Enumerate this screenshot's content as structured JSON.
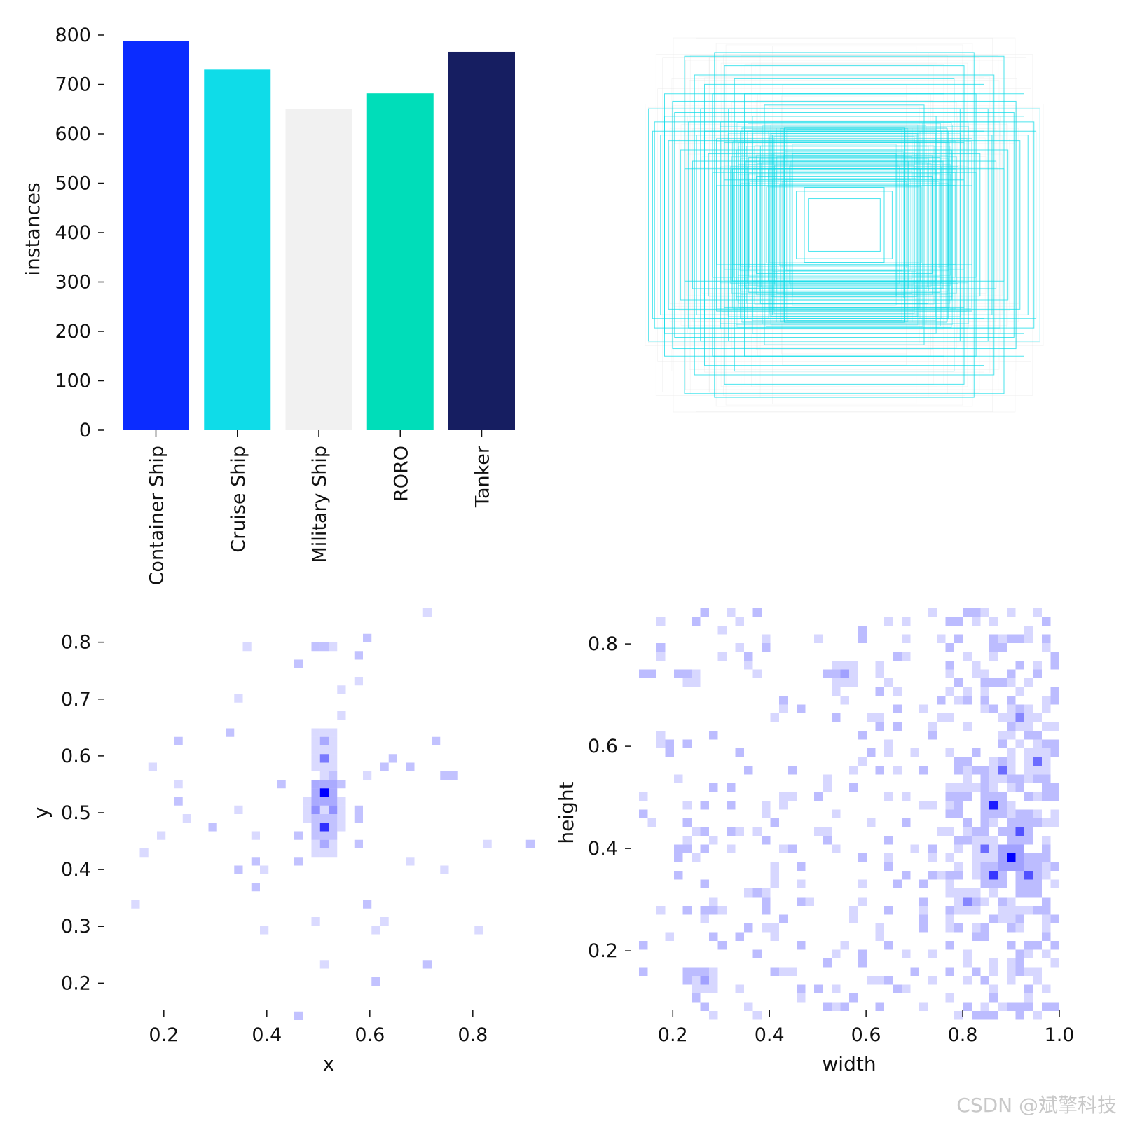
{
  "chart_data": [
    {
      "type": "bar",
      "panel": "class-counts",
      "categories": [
        "Container Ship",
        "Cruise Ship",
        "Military Ship",
        "RORO",
        "Tanker"
      ],
      "values": [
        788,
        730,
        650,
        682,
        766
      ],
      "colors": [
        "#0b2cff",
        "#0fdce8",
        "#f1f1f1",
        "#00ddb9",
        "#161e61"
      ],
      "ylabel": "instances",
      "yticks": [
        0,
        100,
        200,
        300,
        400,
        500,
        600,
        700,
        800
      ],
      "ylim": [
        0,
        800
      ]
    },
    {
      "type": "rectangles-overlay",
      "panel": "box-shapes",
      "color": "#0fdce8",
      "description_of_data": "anchor-centred bounding boxes, width x height in normalized units",
      "boxes": [
        [
          0.98,
          0.62
        ],
        [
          0.95,
          0.55
        ],
        [
          0.9,
          0.7
        ],
        [
          0.8,
          0.9
        ],
        [
          0.65,
          0.92
        ],
        [
          0.92,
          0.48
        ],
        [
          0.85,
          0.6
        ],
        [
          0.75,
          0.8
        ],
        [
          0.7,
          0.75
        ],
        [
          0.6,
          0.85
        ],
        [
          0.88,
          0.45
        ],
        [
          0.78,
          0.55
        ],
        [
          0.72,
          0.62
        ],
        [
          0.66,
          0.7
        ],
        [
          0.55,
          0.78
        ],
        [
          0.82,
          0.4
        ],
        [
          0.74,
          0.48
        ],
        [
          0.62,
          0.55
        ],
        [
          0.58,
          0.62
        ],
        [
          0.5,
          0.7
        ],
        [
          0.68,
          0.38
        ],
        [
          0.6,
          0.44
        ],
        [
          0.52,
          0.5
        ],
        [
          0.46,
          0.58
        ],
        [
          0.4,
          0.64
        ],
        [
          0.56,
          0.3
        ],
        [
          0.48,
          0.36
        ],
        [
          0.42,
          0.42
        ],
        [
          0.36,
          0.48
        ],
        [
          0.3,
          0.52
        ],
        [
          0.44,
          0.26
        ],
        [
          0.38,
          0.3
        ],
        [
          0.32,
          0.34
        ],
        [
          0.26,
          0.38
        ],
        [
          0.2,
          0.2
        ],
        [
          0.24,
          0.18
        ],
        [
          0.18,
          0.14
        ],
        [
          0.96,
          0.5
        ],
        [
          0.9,
          0.58
        ],
        [
          0.86,
          0.66
        ],
        [
          0.7,
          0.5
        ],
        [
          0.64,
          0.46
        ],
        [
          0.54,
          0.4
        ],
        [
          0.5,
          0.34
        ],
        [
          0.46,
          0.3
        ],
        [
          0.8,
          0.3
        ],
        [
          0.76,
          0.34
        ],
        [
          0.66,
          0.28
        ],
        [
          0.6,
          0.24
        ],
        [
          0.52,
          0.22
        ]
      ]
    },
    {
      "type": "heatmap",
      "panel": "xy-centers",
      "xlabel": "x",
      "ylabel": "y",
      "xticks": [
        0.2,
        0.4,
        0.6,
        0.8
      ],
      "yticks": [
        0.2,
        0.3,
        0.4,
        0.5,
        0.6,
        0.7,
        0.8
      ],
      "xlim": [
        0.12,
        0.92
      ],
      "ylim": [
        0.14,
        0.86
      ],
      "color": "#0000ff",
      "hotspots": [
        {
          "x": 0.505,
          "y": 0.53,
          "count": 10
        },
        {
          "x": 0.505,
          "y": 0.48,
          "count": 8
        },
        {
          "x": 0.505,
          "y": 0.59,
          "count": 5
        },
        {
          "x": 0.49,
          "y": 0.51,
          "count": 4
        },
        {
          "x": 0.52,
          "y": 0.51,
          "count": 4
        },
        {
          "x": 0.505,
          "y": 0.44,
          "count": 3
        },
        {
          "x": 0.505,
          "y": 0.63,
          "count": 3
        }
      ]
    },
    {
      "type": "heatmap",
      "panel": "width-height",
      "xlabel": "width",
      "ylabel": "height",
      "xticks": [
        0.2,
        0.4,
        0.6,
        0.8,
        1.0
      ],
      "yticks": [
        0.2,
        0.4,
        0.6,
        0.8
      ],
      "xlim": [
        0.13,
        1.0
      ],
      "ylim": [
        0.07,
        0.87
      ],
      "color": "#0000ff",
      "hotspots": [
        {
          "x": 0.9,
          "y": 0.38,
          "count": 9
        },
        {
          "x": 0.86,
          "y": 0.48,
          "count": 8
        },
        {
          "x": 0.87,
          "y": 0.34,
          "count": 7
        },
        {
          "x": 0.92,
          "y": 0.43,
          "count": 6
        },
        {
          "x": 0.94,
          "y": 0.34,
          "count": 6
        },
        {
          "x": 0.84,
          "y": 0.4,
          "count": 5
        },
        {
          "x": 0.88,
          "y": 0.56,
          "count": 5
        },
        {
          "x": 0.96,
          "y": 0.57,
          "count": 5
        },
        {
          "x": 0.81,
          "y": 0.3,
          "count": 4
        },
        {
          "x": 0.91,
          "y": 0.66,
          "count": 4
        },
        {
          "x": 0.27,
          "y": 0.15,
          "count": 3
        },
        {
          "x": 0.56,
          "y": 0.74,
          "count": 3
        }
      ]
    }
  ],
  "watermark": "CSDN @斌擎科技"
}
